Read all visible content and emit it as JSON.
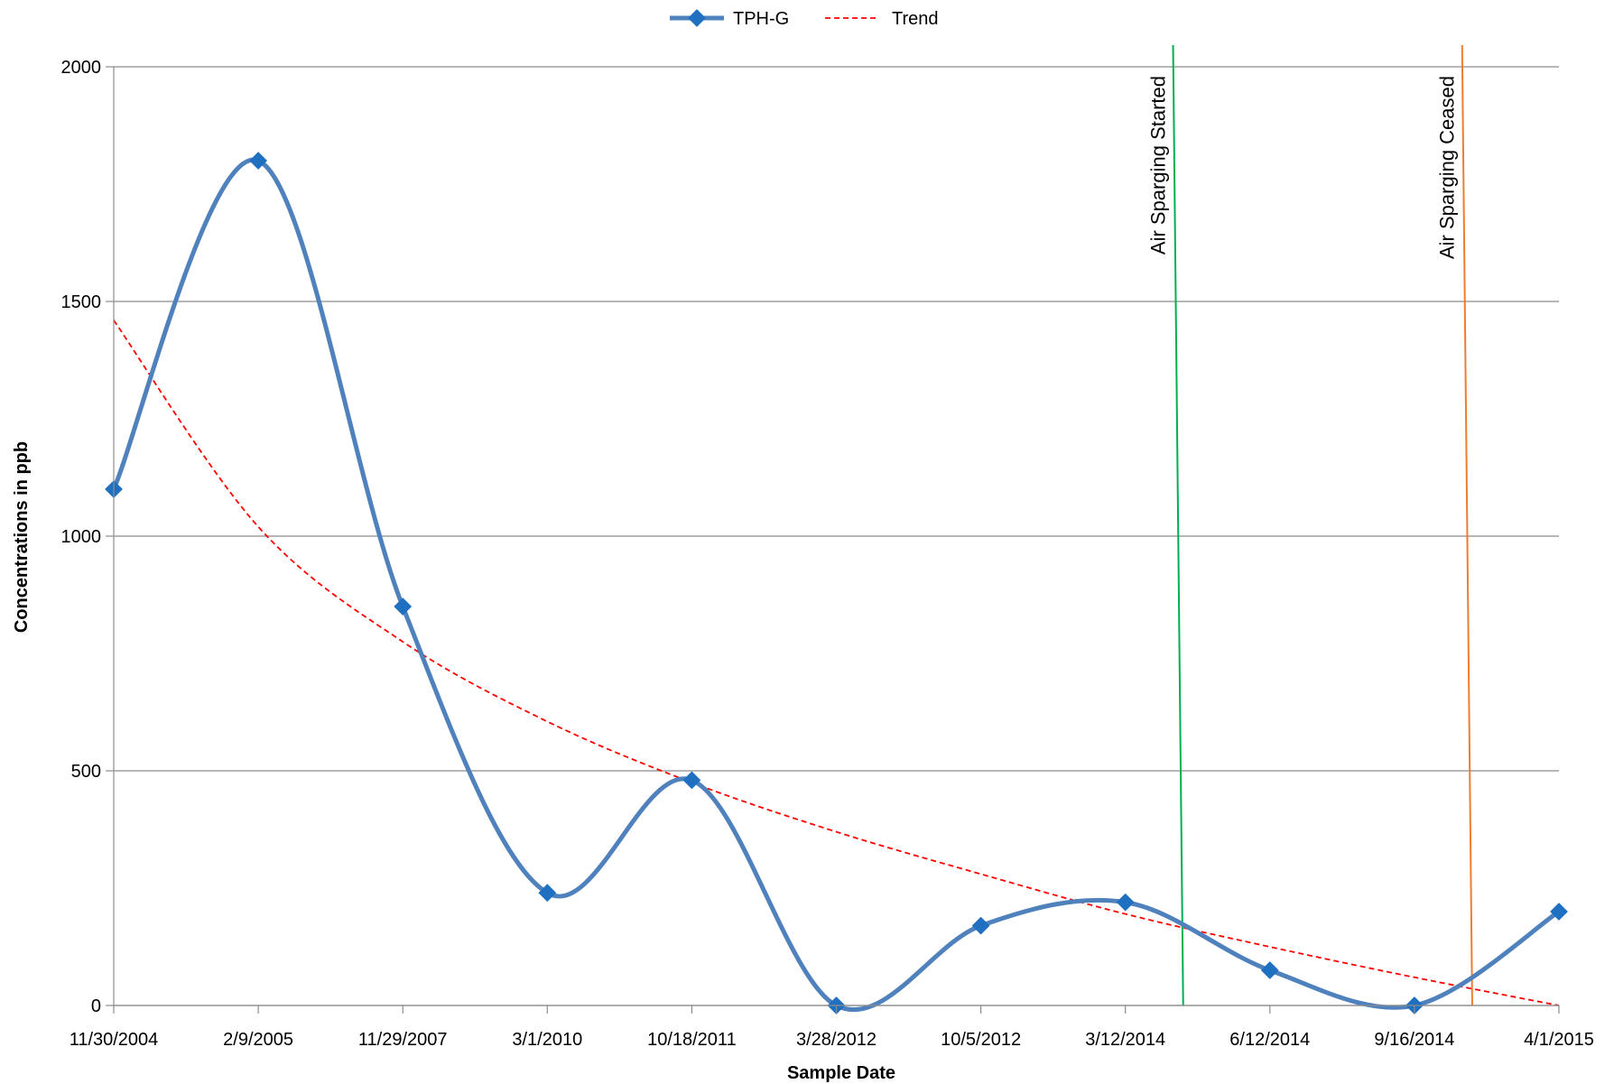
{
  "chart_data": {
    "type": "line",
    "title": "",
    "xlabel": "Sample Date",
    "ylabel": "Concentrations in ppb",
    "categories": [
      "11/30/2004",
      "2/9/2005",
      "11/29/2007",
      "3/1/2010",
      "10/18/2011",
      "3/28/2012",
      "10/5/2012",
      "3/12/2014",
      "6/12/2014",
      "9/16/2014",
      "4/1/2015"
    ],
    "series": [
      {
        "name": "TPH-G",
        "values": [
          1100,
          1800,
          850,
          240,
          480,
          0,
          170,
          220,
          75,
          0,
          200
        ],
        "color": "#4f81bd",
        "marker": "diamond",
        "smooth": true
      }
    ],
    "trend": {
      "name": "Trend",
      "color": "#ff0000",
      "style": "dashed",
      "values": [
        1460,
        1020,
        775,
        605,
        475,
        370,
        280,
        195,
        125,
        60,
        0
      ]
    },
    "yticks": [
      0,
      500,
      1000,
      1500,
      2000
    ],
    "ylim": [
      0,
      2000
    ],
    "grid": "horizontal",
    "legend_position": "top-center",
    "annotations": [
      {
        "text": "Air Sparging Started",
        "color": "#00b050",
        "x_top_index": 7.33,
        "x_bottom_index": 7.4
      },
      {
        "text": "Air Sparging Ceased",
        "color": "#ed7d31",
        "x_top_index": 9.33,
        "x_bottom_index": 9.4
      }
    ]
  }
}
